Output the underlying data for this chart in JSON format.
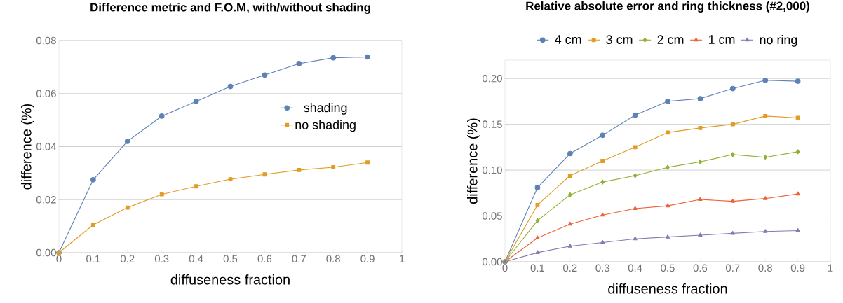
{
  "chart_data": [
    {
      "type": "line",
      "title": "Difference metric and F.O.M, with/without shading",
      "xlabel": "diffuseness fraction",
      "ylabel": "difference (%)",
      "x": [
        0,
        0.1,
        0.2,
        0.3,
        0.4,
        0.5,
        0.6,
        0.7,
        0.8,
        0.9
      ],
      "series": [
        {
          "name": "shading",
          "color": "#5e81b5",
          "marker": "circle",
          "values": [
            0,
            0.0275,
            0.042,
            0.0515,
            0.057,
            0.0627,
            0.067,
            0.0713,
            0.0735,
            0.0738
          ]
        },
        {
          "name": "no shading",
          "color": "#e19c24",
          "marker": "square",
          "values": [
            0,
            0.0105,
            0.017,
            0.022,
            0.025,
            0.0277,
            0.0295,
            0.0312,
            0.0322,
            0.034
          ]
        }
      ],
      "xlim": [
        0,
        1
      ],
      "xticks": [
        0,
        0.1,
        0.2,
        0.3,
        0.4,
        0.5,
        0.6,
        0.7,
        0.8,
        0.9,
        1
      ],
      "ylim": [
        0,
        0.08
      ],
      "yticks": [
        {
          "value": 0,
          "label": "0.00"
        },
        {
          "value": 0.02,
          "label": "0.02"
        },
        {
          "value": 0.04,
          "label": "0.04"
        },
        {
          "value": 0.06,
          "label": "0.06"
        },
        {
          "value": 0.08,
          "label": "0.08"
        }
      ],
      "grid": "y",
      "legend": "right"
    },
    {
      "type": "line",
      "title": "Relative absolute error and ring thickness (#2,000)",
      "xlabel": "diffuseness fraction",
      "ylabel": "difference (%)",
      "x": [
        0,
        0.1,
        0.2,
        0.3,
        0.4,
        0.5,
        0.6,
        0.7,
        0.8,
        0.9
      ],
      "series": [
        {
          "name": "4 cm",
          "color": "#5e81b5",
          "marker": "circle",
          "values": [
            0,
            0.081,
            0.118,
            0.138,
            0.16,
            0.175,
            0.178,
            0.189,
            0.198,
            0.197
          ]
        },
        {
          "name": "3 cm",
          "color": "#e19c24",
          "marker": "square",
          "values": [
            0,
            0.062,
            0.094,
            0.11,
            0.125,
            0.141,
            0.146,
            0.15,
            0.159,
            0.157
          ]
        },
        {
          "name": "2 cm",
          "color": "#8fb032",
          "marker": "diamond",
          "values": [
            0,
            0.045,
            0.073,
            0.087,
            0.094,
            0.103,
            0.109,
            0.117,
            0.114,
            0.12
          ]
        },
        {
          "name": "1 cm",
          "color": "#eb6235",
          "marker": "triangle",
          "values": [
            0,
            0.026,
            0.041,
            0.051,
            0.058,
            0.061,
            0.068,
            0.066,
            0.069,
            0.074
          ]
        },
        {
          "name": "no ring",
          "color": "#8778b3",
          "marker": "triangle",
          "values": [
            0,
            0.01,
            0.017,
            0.021,
            0.025,
            0.027,
            0.029,
            0.031,
            0.033,
            0.034
          ]
        }
      ],
      "xlim": [
        0,
        1
      ],
      "xticks": [
        0,
        0.1,
        0.2,
        0.3,
        0.4,
        0.5,
        0.6,
        0.7,
        0.8,
        0.9,
        1
      ],
      "ylim": [
        0,
        0.22
      ],
      "yticks": [
        {
          "value": 0,
          "label": "0.00"
        },
        0.05,
        {
          "value": 0.1,
          "label": "0.10"
        },
        0.15,
        {
          "value": 0.2,
          "label": "0.20"
        }
      ],
      "grid": "y",
      "legend": "top"
    }
  ]
}
